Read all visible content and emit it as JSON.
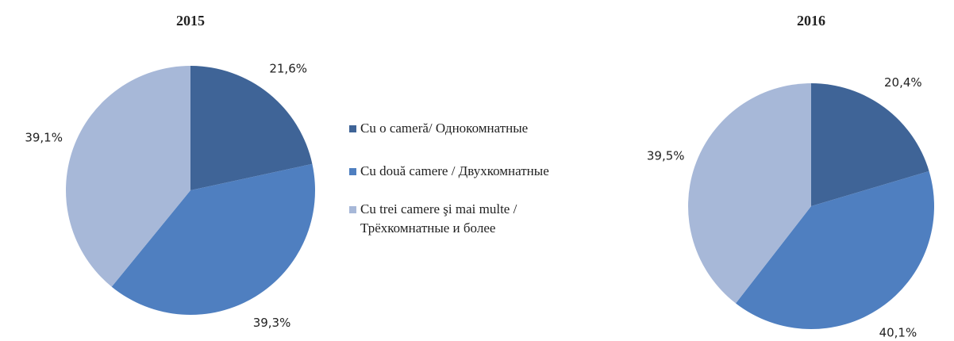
{
  "chart_data": [
    {
      "type": "pie",
      "title": "2015",
      "values": [
        21.6,
        39.3,
        39.1
      ],
      "value_labels": [
        "21,6%",
        "39,3%",
        "39,1%"
      ]
    },
    {
      "type": "pie",
      "title": "2016",
      "values": [
        20.4,
        40.1,
        39.5
      ],
      "value_labels": [
        "20,4%",
        "40,1%",
        "39,5%"
      ]
    }
  ],
  "legend": {
    "labels": [
      "Cu o cameră/ Однокомнатные",
      "Cu două camere / Двухкомнатные",
      "Cu trei camere şi mai multe / Трёхкомнатные и более"
    ],
    "colors": [
      "#3f6497",
      "#4f7fc0",
      "#a7b8d8"
    ]
  }
}
